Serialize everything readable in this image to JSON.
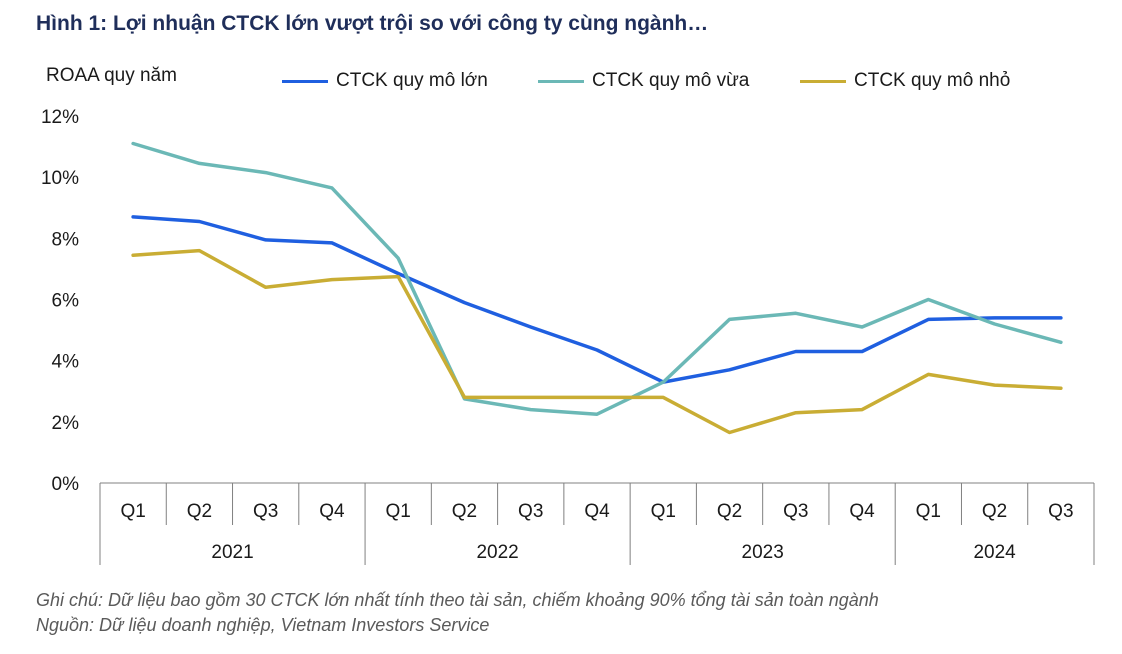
{
  "title": "Hình 1: Lợi nhuận CTCK lớn vượt trội so với công ty cùng ngành…",
  "notes": {
    "note": "Ghi chú: Dữ liệu bao gồm 30 CTCK lớn nhất tính theo tài sản, chiếm khoảng 90% tổng tài sản toàn ngành",
    "source": "Nguồn: Dữ liệu doanh nghiệp, Vietnam Investors Service"
  },
  "chart_data": {
    "type": "line",
    "ylabel": "ROAA quy năm",
    "ylim": [
      0,
      12
    ],
    "yticks": [
      "0%",
      "2%",
      "4%",
      "6%",
      "8%",
      "10%",
      "12%"
    ],
    "grid": false,
    "legend_position": "top",
    "categories": [
      "Q1",
      "Q2",
      "Q3",
      "Q4",
      "Q1",
      "Q2",
      "Q3",
      "Q4",
      "Q1",
      "Q2",
      "Q3",
      "Q4",
      "Q1",
      "Q2",
      "Q3"
    ],
    "years": [
      "2021",
      "2022",
      "2023",
      "2024"
    ],
    "series": [
      {
        "name": "CTCK quy mô lớn",
        "color": "#1f5fe0",
        "values": [
          8.7,
          8.55,
          7.95,
          7.85,
          6.85,
          5.9,
          5.1,
          4.35,
          3.3,
          3.7,
          4.3,
          4.3,
          5.35,
          5.4,
          5.4
        ]
      },
      {
        "name": "CTCK quy mô vừa",
        "color": "#6bb8b6",
        "values": [
          11.1,
          10.45,
          10.15,
          9.65,
          7.35,
          2.75,
          2.4,
          2.25,
          3.3,
          5.35,
          5.55,
          5.1,
          6.0,
          5.2,
          4.6
        ]
      },
      {
        "name": "CTCK quy mô nhỏ",
        "color": "#c9ad34",
        "values": [
          7.45,
          7.6,
          6.4,
          6.65,
          6.75,
          2.8,
          2.8,
          2.8,
          2.8,
          1.65,
          2.3,
          2.4,
          3.55,
          3.2,
          3.1
        ]
      }
    ]
  }
}
